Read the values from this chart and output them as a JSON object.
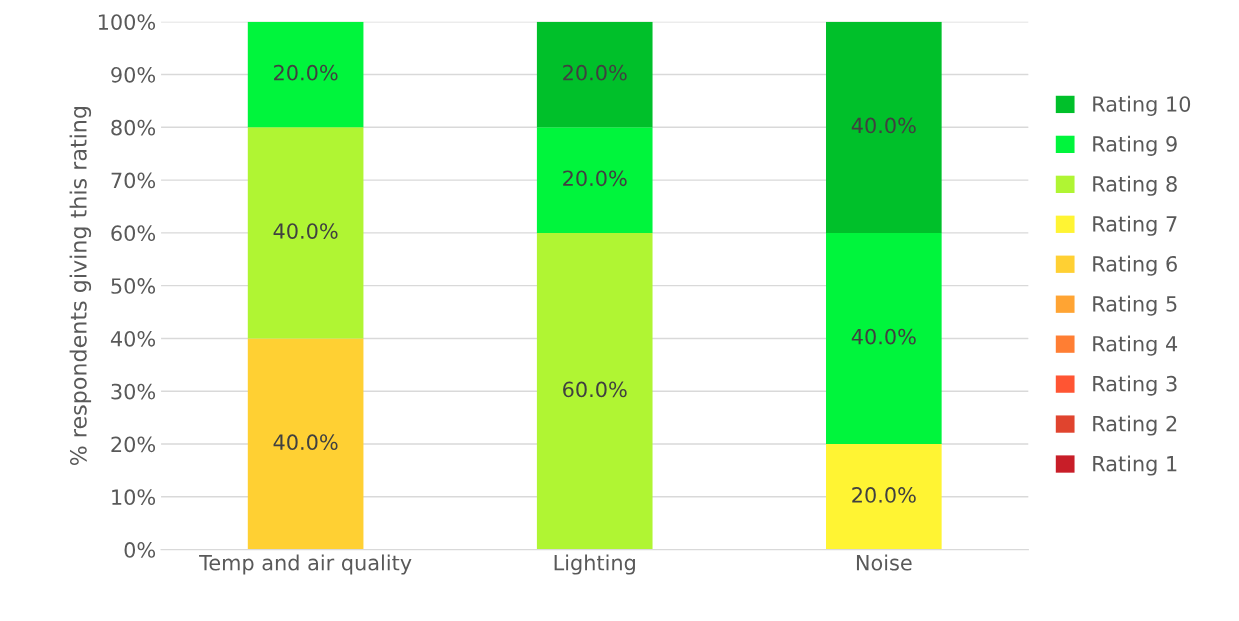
{
  "chart_data": {
    "type": "bar",
    "stacked": true,
    "ylabel": "% respondents giving this rating",
    "categories": [
      "Temp and air quality",
      "Lighting",
      "Noise"
    ],
    "series": [
      {
        "name": "Rating 1",
        "color": "#c81e28",
        "values": [
          0,
          0,
          0
        ],
        "value_labels": [
          null,
          null,
          null
        ]
      },
      {
        "name": "Rating 2",
        "color": "#e0442e",
        "values": [
          0,
          0,
          0
        ],
        "value_labels": [
          null,
          null,
          null
        ]
      },
      {
        "name": "Rating 3",
        "color": "#ff5533",
        "values": [
          0,
          0,
          0
        ],
        "value_labels": [
          null,
          null,
          null
        ]
      },
      {
        "name": "Rating 4",
        "color": "#ff7e33",
        "values": [
          0,
          0,
          0
        ],
        "value_labels": [
          null,
          null,
          null
        ]
      },
      {
        "name": "Rating 5",
        "color": "#ffa433",
        "values": [
          0,
          0,
          0
        ],
        "value_labels": [
          null,
          null,
          null
        ]
      },
      {
        "name": "Rating 6",
        "color": "#ffd033",
        "values": [
          40,
          0,
          0
        ],
        "value_labels": [
          "40.0%",
          null,
          null
        ]
      },
      {
        "name": "Rating 7",
        "color": "#fff433",
        "values": [
          0,
          0,
          20
        ],
        "value_labels": [
          null,
          null,
          "20.0%"
        ]
      },
      {
        "name": "Rating 8",
        "color": "#b0f533",
        "values": [
          40,
          60,
          0
        ],
        "value_labels": [
          "40.0%",
          "60.0%",
          null
        ]
      },
      {
        "name": "Rating 9",
        "color": "#00f53c",
        "values": [
          20,
          20,
          40
        ],
        "value_labels": [
          "20.0%",
          "20.0%",
          "40.0%"
        ]
      },
      {
        "name": "Rating 10",
        "color": "#00c02a",
        "values": [
          0,
          20,
          40
        ],
        "value_labels": [
          null,
          "20.0%",
          "40.0%"
        ]
      }
    ],
    "ylim": [
      0,
      100
    ],
    "yticks": [
      {
        "value": 0,
        "label": "0%"
      },
      {
        "value": 10,
        "label": "10%"
      },
      {
        "value": 20,
        "label": "20%"
      },
      {
        "value": 30,
        "label": "30%"
      },
      {
        "value": 40,
        "label": "40%"
      },
      {
        "value": 50,
        "label": "50%"
      },
      {
        "value": 60,
        "label": "60%"
      },
      {
        "value": 70,
        "label": "70%"
      },
      {
        "value": 80,
        "label": "80%"
      },
      {
        "value": 90,
        "label": "90%"
      },
      {
        "value": 100,
        "label": "100%"
      }
    ],
    "grid": "y",
    "legend": "right"
  }
}
